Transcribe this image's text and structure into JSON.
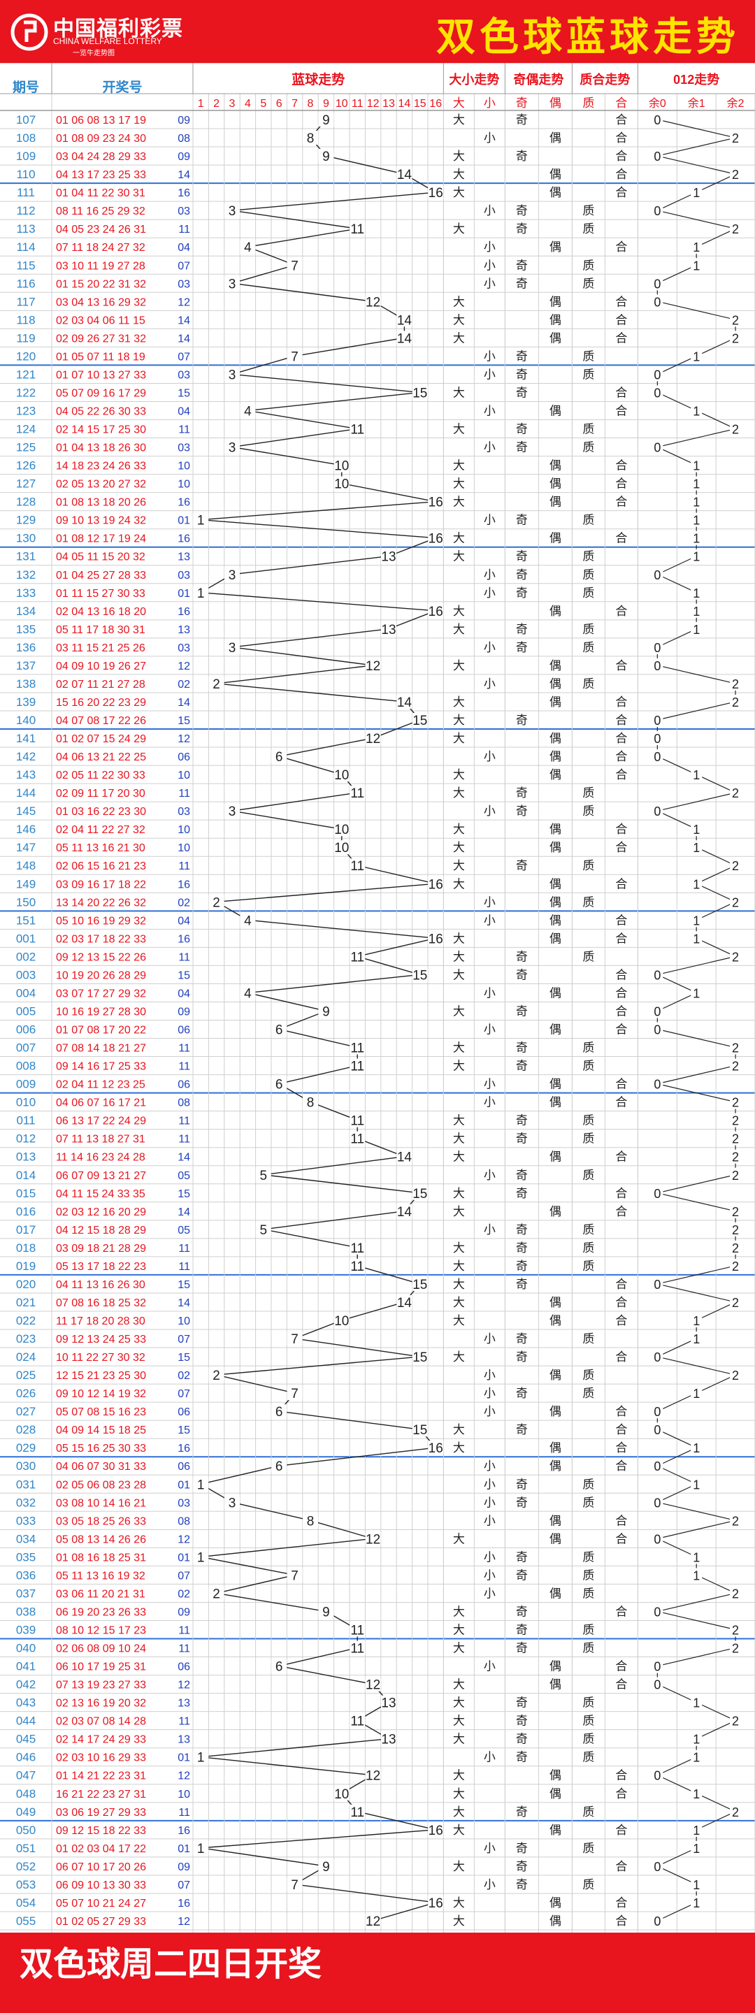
{
  "header": {
    "logo_name": "中国福利彩票",
    "logo_en": "CHINA WELFARE LOTTERY",
    "logo_slogan": "一览牛走势图",
    "title": "双色球蓝球走势"
  },
  "footer": {
    "text": "双色球周二四日开奖"
  },
  "colors": {
    "brand_red": "#e8141e",
    "title_yellow": "#ffe400",
    "issue_blue": "#2f86c9",
    "number_red": "#e8141e",
    "blue_ball": "#1f3fbf",
    "grid": "#cfcfcf",
    "divider": "#2f6fd6"
  },
  "table": {
    "headers": {
      "issue": "期号",
      "numbers": "开奖号",
      "blue_trend": "蓝球走势",
      "size": "大小走势",
      "parity": "奇偶走势",
      "prime": "质合走势",
      "mod": "012走势"
    },
    "blue_cols": [
      "1",
      "2",
      "3",
      "4",
      "5",
      "6",
      "7",
      "8",
      "9",
      "10",
      "11",
      "12",
      "13",
      "14",
      "15",
      "16"
    ],
    "sub_labels": [
      "大",
      "小",
      "奇",
      "偶",
      "质",
      "合",
      "余0",
      "余1",
      "余2"
    ]
  },
  "chart_data": {
    "type": "table",
    "rows": [
      {
        "issue": "107",
        "red": "01 06 08 13 17 19",
        "blue": 9,
        "size": "大",
        "parity": "奇",
        "prime": "合",
        "mod": 0
      },
      {
        "issue": "108",
        "red": "01 08 09 23 24 30",
        "blue": 8,
        "size": "小",
        "parity": "偶",
        "prime": "合",
        "mod": 2
      },
      {
        "issue": "109",
        "red": "03 04 24 28 29 33",
        "blue": 9,
        "size": "大",
        "parity": "奇",
        "prime": "合",
        "mod": 0
      },
      {
        "issue": "110",
        "red": "04 13 17 23 25 33",
        "blue": 14,
        "size": "大",
        "parity": "偶",
        "prime": "合",
        "mod": 2
      },
      {
        "issue": "111",
        "red": "01 04 11 22 30 31",
        "blue": 16,
        "size": "大",
        "parity": "偶",
        "prime": "合",
        "mod": 1
      },
      {
        "issue": "112",
        "red": "08 11 16 25 29 32",
        "blue": 3,
        "size": "小",
        "parity": "奇",
        "prime": "质",
        "mod": 0
      },
      {
        "issue": "113",
        "red": "04 05 23 24 26 31",
        "blue": 11,
        "size": "大",
        "parity": "奇",
        "prime": "质",
        "mod": 2
      },
      {
        "issue": "114",
        "red": "07 11 18 24 27 32",
        "blue": 4,
        "size": "小",
        "parity": "偶",
        "prime": "合",
        "mod": 1
      },
      {
        "issue": "115",
        "red": "03 10 11 19 27 28",
        "blue": 7,
        "size": "小",
        "parity": "奇",
        "prime": "质",
        "mod": 1
      },
      {
        "issue": "116",
        "red": "01 15 20 22 31 32",
        "blue": 3,
        "size": "小",
        "parity": "奇",
        "prime": "质",
        "mod": 0
      },
      {
        "issue": "117",
        "red": "03 04 13 16 29 32",
        "blue": 12,
        "size": "大",
        "parity": "偶",
        "prime": "合",
        "mod": 0
      },
      {
        "issue": "118",
        "red": "02 03 04 06 11 15",
        "blue": 14,
        "size": "大",
        "parity": "偶",
        "prime": "合",
        "mod": 2
      },
      {
        "issue": "119",
        "red": "02 09 26 27 31 32",
        "blue": 14,
        "size": "大",
        "parity": "偶",
        "prime": "合",
        "mod": 2
      },
      {
        "issue": "120",
        "red": "01 05 07 11 18 19",
        "blue": 7,
        "size": "小",
        "parity": "奇",
        "prime": "质",
        "mod": 1
      },
      {
        "issue": "121",
        "red": "01 07 10 13 27 33",
        "blue": 3,
        "size": "小",
        "parity": "奇",
        "prime": "质",
        "mod": 0
      },
      {
        "issue": "122",
        "red": "05 07 09 16 17 29",
        "blue": 15,
        "size": "大",
        "parity": "奇",
        "prime": "合",
        "mod": 0
      },
      {
        "issue": "123",
        "red": "04 05 22 26 30 33",
        "blue": 4,
        "size": "小",
        "parity": "偶",
        "prime": "合",
        "mod": 1
      },
      {
        "issue": "124",
        "red": "02 14 15 17 25 30",
        "blue": 11,
        "size": "大",
        "parity": "奇",
        "prime": "质",
        "mod": 2
      },
      {
        "issue": "125",
        "red": "01 04 13 18 26 30",
        "blue": 3,
        "size": "小",
        "parity": "奇",
        "prime": "质",
        "mod": 0
      },
      {
        "issue": "126",
        "red": "14 18 23 24 26 33",
        "blue": 10,
        "size": "大",
        "parity": "偶",
        "prime": "合",
        "mod": 1
      },
      {
        "issue": "127",
        "red": "02 05 13 20 27 32",
        "blue": 10,
        "size": "大",
        "parity": "偶",
        "prime": "合",
        "mod": 1
      },
      {
        "issue": "128",
        "red": "01 08 13 18 20 26",
        "blue": 16,
        "size": "大",
        "parity": "偶",
        "prime": "合",
        "mod": 1
      },
      {
        "issue": "129",
        "red": "09 10 13 19 24 32",
        "blue": 1,
        "size": "小",
        "parity": "奇",
        "prime": "质",
        "mod": 1
      },
      {
        "issue": "130",
        "red": "01 08 12 17 19 24",
        "blue": 16,
        "size": "大",
        "parity": "偶",
        "prime": "合",
        "mod": 1
      },
      {
        "issue": "131",
        "red": "04 05 11 15 20 32",
        "blue": 13,
        "size": "大",
        "parity": "奇",
        "prime": "质",
        "mod": 1
      },
      {
        "issue": "132",
        "red": "01 04 25 27 28 33",
        "blue": 3,
        "size": "小",
        "parity": "奇",
        "prime": "质",
        "mod": 0
      },
      {
        "issue": "133",
        "red": "01 11 15 27 30 33",
        "blue": 1,
        "size": "小",
        "parity": "奇",
        "prime": "质",
        "mod": 1
      },
      {
        "issue": "134",
        "red": "02 04 13 16 18 20",
        "blue": 16,
        "size": "大",
        "parity": "偶",
        "prime": "合",
        "mod": 1
      },
      {
        "issue": "135",
        "red": "05 11 17 18 30 31",
        "blue": 13,
        "size": "大",
        "parity": "奇",
        "prime": "质",
        "mod": 1
      },
      {
        "issue": "136",
        "red": "03 11 15 21 25 26",
        "blue": 3,
        "size": "小",
        "parity": "奇",
        "prime": "质",
        "mod": 0
      },
      {
        "issue": "137",
        "red": "04 09 10 19 26 27",
        "blue": 12,
        "size": "大",
        "parity": "偶",
        "prime": "合",
        "mod": 0
      },
      {
        "issue": "138",
        "red": "02 07 11 21 27 28",
        "blue": 2,
        "size": "小",
        "parity": "偶",
        "prime": "质",
        "mod": 2
      },
      {
        "issue": "139",
        "red": "15 16 20 22 23 29",
        "blue": 14,
        "size": "大",
        "parity": "偶",
        "prime": "合",
        "mod": 2
      },
      {
        "issue": "140",
        "red": "04 07 08 17 22 26",
        "blue": 15,
        "size": "大",
        "parity": "奇",
        "prime": "合",
        "mod": 0
      },
      {
        "issue": "141",
        "red": "01 02 07 15 24 29",
        "blue": 12,
        "size": "大",
        "parity": "偶",
        "prime": "合",
        "mod": 0
      },
      {
        "issue": "142",
        "red": "04 06 13 21 22 25",
        "blue": 6,
        "size": "小",
        "parity": "偶",
        "prime": "合",
        "mod": 0
      },
      {
        "issue": "143",
        "red": "02 05 11 22 30 33",
        "blue": 10,
        "size": "大",
        "parity": "偶",
        "prime": "合",
        "mod": 1
      },
      {
        "issue": "144",
        "red": "02 09 11 17 20 30",
        "blue": 11,
        "size": "大",
        "parity": "奇",
        "prime": "质",
        "mod": 2
      },
      {
        "issue": "145",
        "red": "01 03 16 22 23 30",
        "blue": 3,
        "size": "小",
        "parity": "奇",
        "prime": "质",
        "mod": 0
      },
      {
        "issue": "146",
        "red": "02 04 11 22 27 32",
        "blue": 10,
        "size": "大",
        "parity": "偶",
        "prime": "合",
        "mod": 1
      },
      {
        "issue": "147",
        "red": "05 11 13 16 21 30",
        "blue": 10,
        "size": "大",
        "parity": "偶",
        "prime": "合",
        "mod": 1
      },
      {
        "issue": "148",
        "red": "02 06 15 16 21 23",
        "blue": 11,
        "size": "大",
        "parity": "奇",
        "prime": "质",
        "mod": 2
      },
      {
        "issue": "149",
        "red": "03 09 16 17 18 22",
        "blue": 16,
        "size": "大",
        "parity": "偶",
        "prime": "合",
        "mod": 1
      },
      {
        "issue": "150",
        "red": "13 14 20 22 26 32",
        "blue": 2,
        "size": "小",
        "parity": "偶",
        "prime": "质",
        "mod": 2
      },
      {
        "issue": "151",
        "red": "05 10 16 19 29 32",
        "blue": 4,
        "size": "小",
        "parity": "偶",
        "prime": "合",
        "mod": 1
      },
      {
        "issue": "001",
        "red": "02 03 17 18 22 33",
        "blue": 16,
        "size": "大",
        "parity": "偶",
        "prime": "合",
        "mod": 1
      },
      {
        "issue": "002",
        "red": "09 12 13 15 22 26",
        "blue": 11,
        "size": "大",
        "parity": "奇",
        "prime": "质",
        "mod": 2
      },
      {
        "issue": "003",
        "red": "10 19 20 26 28 29",
        "blue": 15,
        "size": "大",
        "parity": "奇",
        "prime": "合",
        "mod": 0
      },
      {
        "issue": "004",
        "red": "03 07 17 27 29 32",
        "blue": 4,
        "size": "小",
        "parity": "偶",
        "prime": "合",
        "mod": 1
      },
      {
        "issue": "005",
        "red": "10 16 19 27 28 30",
        "blue": 9,
        "size": "大",
        "parity": "奇",
        "prime": "合",
        "mod": 0
      },
      {
        "issue": "006",
        "red": "01 07 08 17 20 22",
        "blue": 6,
        "size": "小",
        "parity": "偶",
        "prime": "合",
        "mod": 0
      },
      {
        "issue": "007",
        "red": "07 08 14 18 21 27",
        "blue": 11,
        "size": "大",
        "parity": "奇",
        "prime": "质",
        "mod": 2
      },
      {
        "issue": "008",
        "red": "09 14 16 17 25 33",
        "blue": 11,
        "size": "大",
        "parity": "奇",
        "prime": "质",
        "mod": 2
      },
      {
        "issue": "009",
        "red": "02 04 11 12 23 25",
        "blue": 6,
        "size": "小",
        "parity": "偶",
        "prime": "合",
        "mod": 0
      },
      {
        "issue": "010",
        "red": "04 06 07 16 17 21",
        "blue": 8,
        "size": "小",
        "parity": "偶",
        "prime": "合",
        "mod": 2
      },
      {
        "issue": "011",
        "red": "06 13 17 22 24 29",
        "blue": 11,
        "size": "大",
        "parity": "奇",
        "prime": "质",
        "mod": 2
      },
      {
        "issue": "012",
        "red": "07 11 13 18 27 31",
        "blue": 11,
        "size": "大",
        "parity": "奇",
        "prime": "质",
        "mod": 2
      },
      {
        "issue": "013",
        "red": "11 14 16 23 24 28",
        "blue": 14,
        "size": "大",
        "parity": "偶",
        "prime": "合",
        "mod": 2
      },
      {
        "issue": "014",
        "red": "06 07 09 13 21 27",
        "blue": 5,
        "size": "小",
        "parity": "奇",
        "prime": "质",
        "mod": 2
      },
      {
        "issue": "015",
        "red": "04 11 15 24 33 35",
        "blue": 15,
        "size": "大",
        "parity": "奇",
        "prime": "合",
        "mod": 0
      },
      {
        "issue": "016",
        "red": "02 03 12 16 20 29",
        "blue": 14,
        "size": "大",
        "parity": "偶",
        "prime": "合",
        "mod": 2
      },
      {
        "issue": "017",
        "red": "04 12 15 18 28 29",
        "blue": 5,
        "size": "小",
        "parity": "奇",
        "prime": "质",
        "mod": 2
      },
      {
        "issue": "018",
        "red": "03 09 18 21 28 29",
        "blue": 11,
        "size": "大",
        "parity": "奇",
        "prime": "质",
        "mod": 2
      },
      {
        "issue": "019",
        "red": "05 13 17 18 22 23",
        "blue": 11,
        "size": "大",
        "parity": "奇",
        "prime": "质",
        "mod": 2
      },
      {
        "issue": "020",
        "red": "04 11 13 16 26 30",
        "blue": 15,
        "size": "大",
        "parity": "奇",
        "prime": "合",
        "mod": 0
      },
      {
        "issue": "021",
        "red": "07 08 16 18 25 32",
        "blue": 14,
        "size": "大",
        "parity": "偶",
        "prime": "合",
        "mod": 2
      },
      {
        "issue": "022",
        "red": "11 17 18 20 28 30",
        "blue": 10,
        "size": "大",
        "parity": "偶",
        "prime": "合",
        "mod": 1
      },
      {
        "issue": "023",
        "red": "09 12 13 24 25 33",
        "blue": 7,
        "size": "小",
        "parity": "奇",
        "prime": "质",
        "mod": 1
      },
      {
        "issue": "024",
        "red": "10 11 22 27 30 32",
        "blue": 15,
        "size": "大",
        "parity": "奇",
        "prime": "合",
        "mod": 0
      },
      {
        "issue": "025",
        "red": "12 15 21 23 25 30",
        "blue": 2,
        "size": "小",
        "parity": "偶",
        "prime": "质",
        "mod": 2
      },
      {
        "issue": "026",
        "red": "09 10 12 14 19 32",
        "blue": 7,
        "size": "小",
        "parity": "奇",
        "prime": "质",
        "mod": 1
      },
      {
        "issue": "027",
        "red": "05 07 08 15 16 23",
        "blue": 6,
        "size": "小",
        "parity": "偶",
        "prime": "合",
        "mod": 0
      },
      {
        "issue": "028",
        "red": "04 09 14 15 18 25",
        "blue": 15,
        "size": "大",
        "parity": "奇",
        "prime": "合",
        "mod": 0
      },
      {
        "issue": "029",
        "red": "05 15 16 25 30 33",
        "blue": 16,
        "size": "大",
        "parity": "偶",
        "prime": "合",
        "mod": 1
      },
      {
        "issue": "030",
        "red": "04 06 07 30 31 33",
        "blue": 6,
        "size": "小",
        "parity": "偶",
        "prime": "合",
        "mod": 0
      },
      {
        "issue": "031",
        "red": "02 05 06 08 23 28",
        "blue": 1,
        "size": "小",
        "parity": "奇",
        "prime": "质",
        "mod": 1
      },
      {
        "issue": "032",
        "red": "03 08 10 14 16 21",
        "blue": 3,
        "size": "小",
        "parity": "奇",
        "prime": "质",
        "mod": 0
      },
      {
        "issue": "033",
        "red": "03 05 18 25 26 33",
        "blue": 8,
        "size": "小",
        "parity": "偶",
        "prime": "合",
        "mod": 2
      },
      {
        "issue": "034",
        "red": "05 08 13 14 26 26",
        "blue": 12,
        "size": "大",
        "parity": "偶",
        "prime": "合",
        "mod": 0
      },
      {
        "issue": "035",
        "red": "01 08 16 18 25 31",
        "blue": 1,
        "size": "小",
        "parity": "奇",
        "prime": "质",
        "mod": 1
      },
      {
        "issue": "036",
        "red": "05 11 13 16 19 32",
        "blue": 7,
        "size": "小",
        "parity": "奇",
        "prime": "质",
        "mod": 1
      },
      {
        "issue": "037",
        "red": "03 06 11 20 21 31",
        "blue": 2,
        "size": "小",
        "parity": "偶",
        "prime": "质",
        "mod": 2
      },
      {
        "issue": "038",
        "red": "06 19 20 23 26 33",
        "blue": 9,
        "size": "大",
        "parity": "奇",
        "prime": "合",
        "mod": 0
      },
      {
        "issue": "039",
        "red": "08 10 12 15 17 23",
        "blue": 11,
        "size": "大",
        "parity": "奇",
        "prime": "质",
        "mod": 2
      },
      {
        "issue": "040",
        "red": "02 06 08 09 10 24",
        "blue": 11,
        "size": "大",
        "parity": "奇",
        "prime": "质",
        "mod": 2
      },
      {
        "issue": "041",
        "red": "06 10 17 19 25 31",
        "blue": 6,
        "size": "小",
        "parity": "偶",
        "prime": "合",
        "mod": 0
      },
      {
        "issue": "042",
        "red": "07 13 19 23 27 33",
        "blue": 12,
        "size": "大",
        "parity": "偶",
        "prime": "合",
        "mod": 0
      },
      {
        "issue": "043",
        "red": "02 13 16 19 20 32",
        "blue": 13,
        "size": "大",
        "parity": "奇",
        "prime": "质",
        "mod": 1
      },
      {
        "issue": "044",
        "red": "02 03 07 08 14 28",
        "blue": 11,
        "size": "大",
        "parity": "奇",
        "prime": "质",
        "mod": 2
      },
      {
        "issue": "045",
        "red": "02 14 17 24 29 33",
        "blue": 13,
        "size": "大",
        "parity": "奇",
        "prime": "质",
        "mod": 1
      },
      {
        "issue": "046",
        "red": "02 03 10 16 29 33",
        "blue": 1,
        "size": "小",
        "parity": "奇",
        "prime": "质",
        "mod": 1
      },
      {
        "issue": "047",
        "red": "01 14 21 22 23 31",
        "blue": 12,
        "size": "大",
        "parity": "偶",
        "prime": "合",
        "mod": 0
      },
      {
        "issue": "048",
        "red": "16 21 22 23 27 31",
        "blue": 10,
        "size": "大",
        "parity": "偶",
        "prime": "合",
        "mod": 1
      },
      {
        "issue": "049",
        "red": "03 06 19 27 29 33",
        "blue": 11,
        "size": "大",
        "parity": "奇",
        "prime": "质",
        "mod": 2
      },
      {
        "issue": "050",
        "red": "09 12 15 18 22 33",
        "blue": 16,
        "size": "大",
        "parity": "偶",
        "prime": "合",
        "mod": 1
      },
      {
        "issue": "051",
        "red": "01 02 03 04 17 22",
        "blue": 1,
        "size": "小",
        "parity": "奇",
        "prime": "质",
        "mod": 1
      },
      {
        "issue": "052",
        "red": "06 07 10 17 20 26",
        "blue": 9,
        "size": "大",
        "parity": "奇",
        "prime": "合",
        "mod": 0
      },
      {
        "issue": "053",
        "red": "06 09 10 13 30 33",
        "blue": 7,
        "size": "小",
        "parity": "奇",
        "prime": "质",
        "mod": 1
      },
      {
        "issue": "054",
        "red": "05 07 10 21 24 27",
        "blue": 16,
        "size": "大",
        "parity": "偶",
        "prime": "合",
        "mod": 1
      },
      {
        "issue": "055",
        "red": "01 02 05 27 29 33",
        "blue": 12,
        "size": "大",
        "parity": "偶",
        "prime": "合",
        "mod": 0
      }
    ]
  }
}
